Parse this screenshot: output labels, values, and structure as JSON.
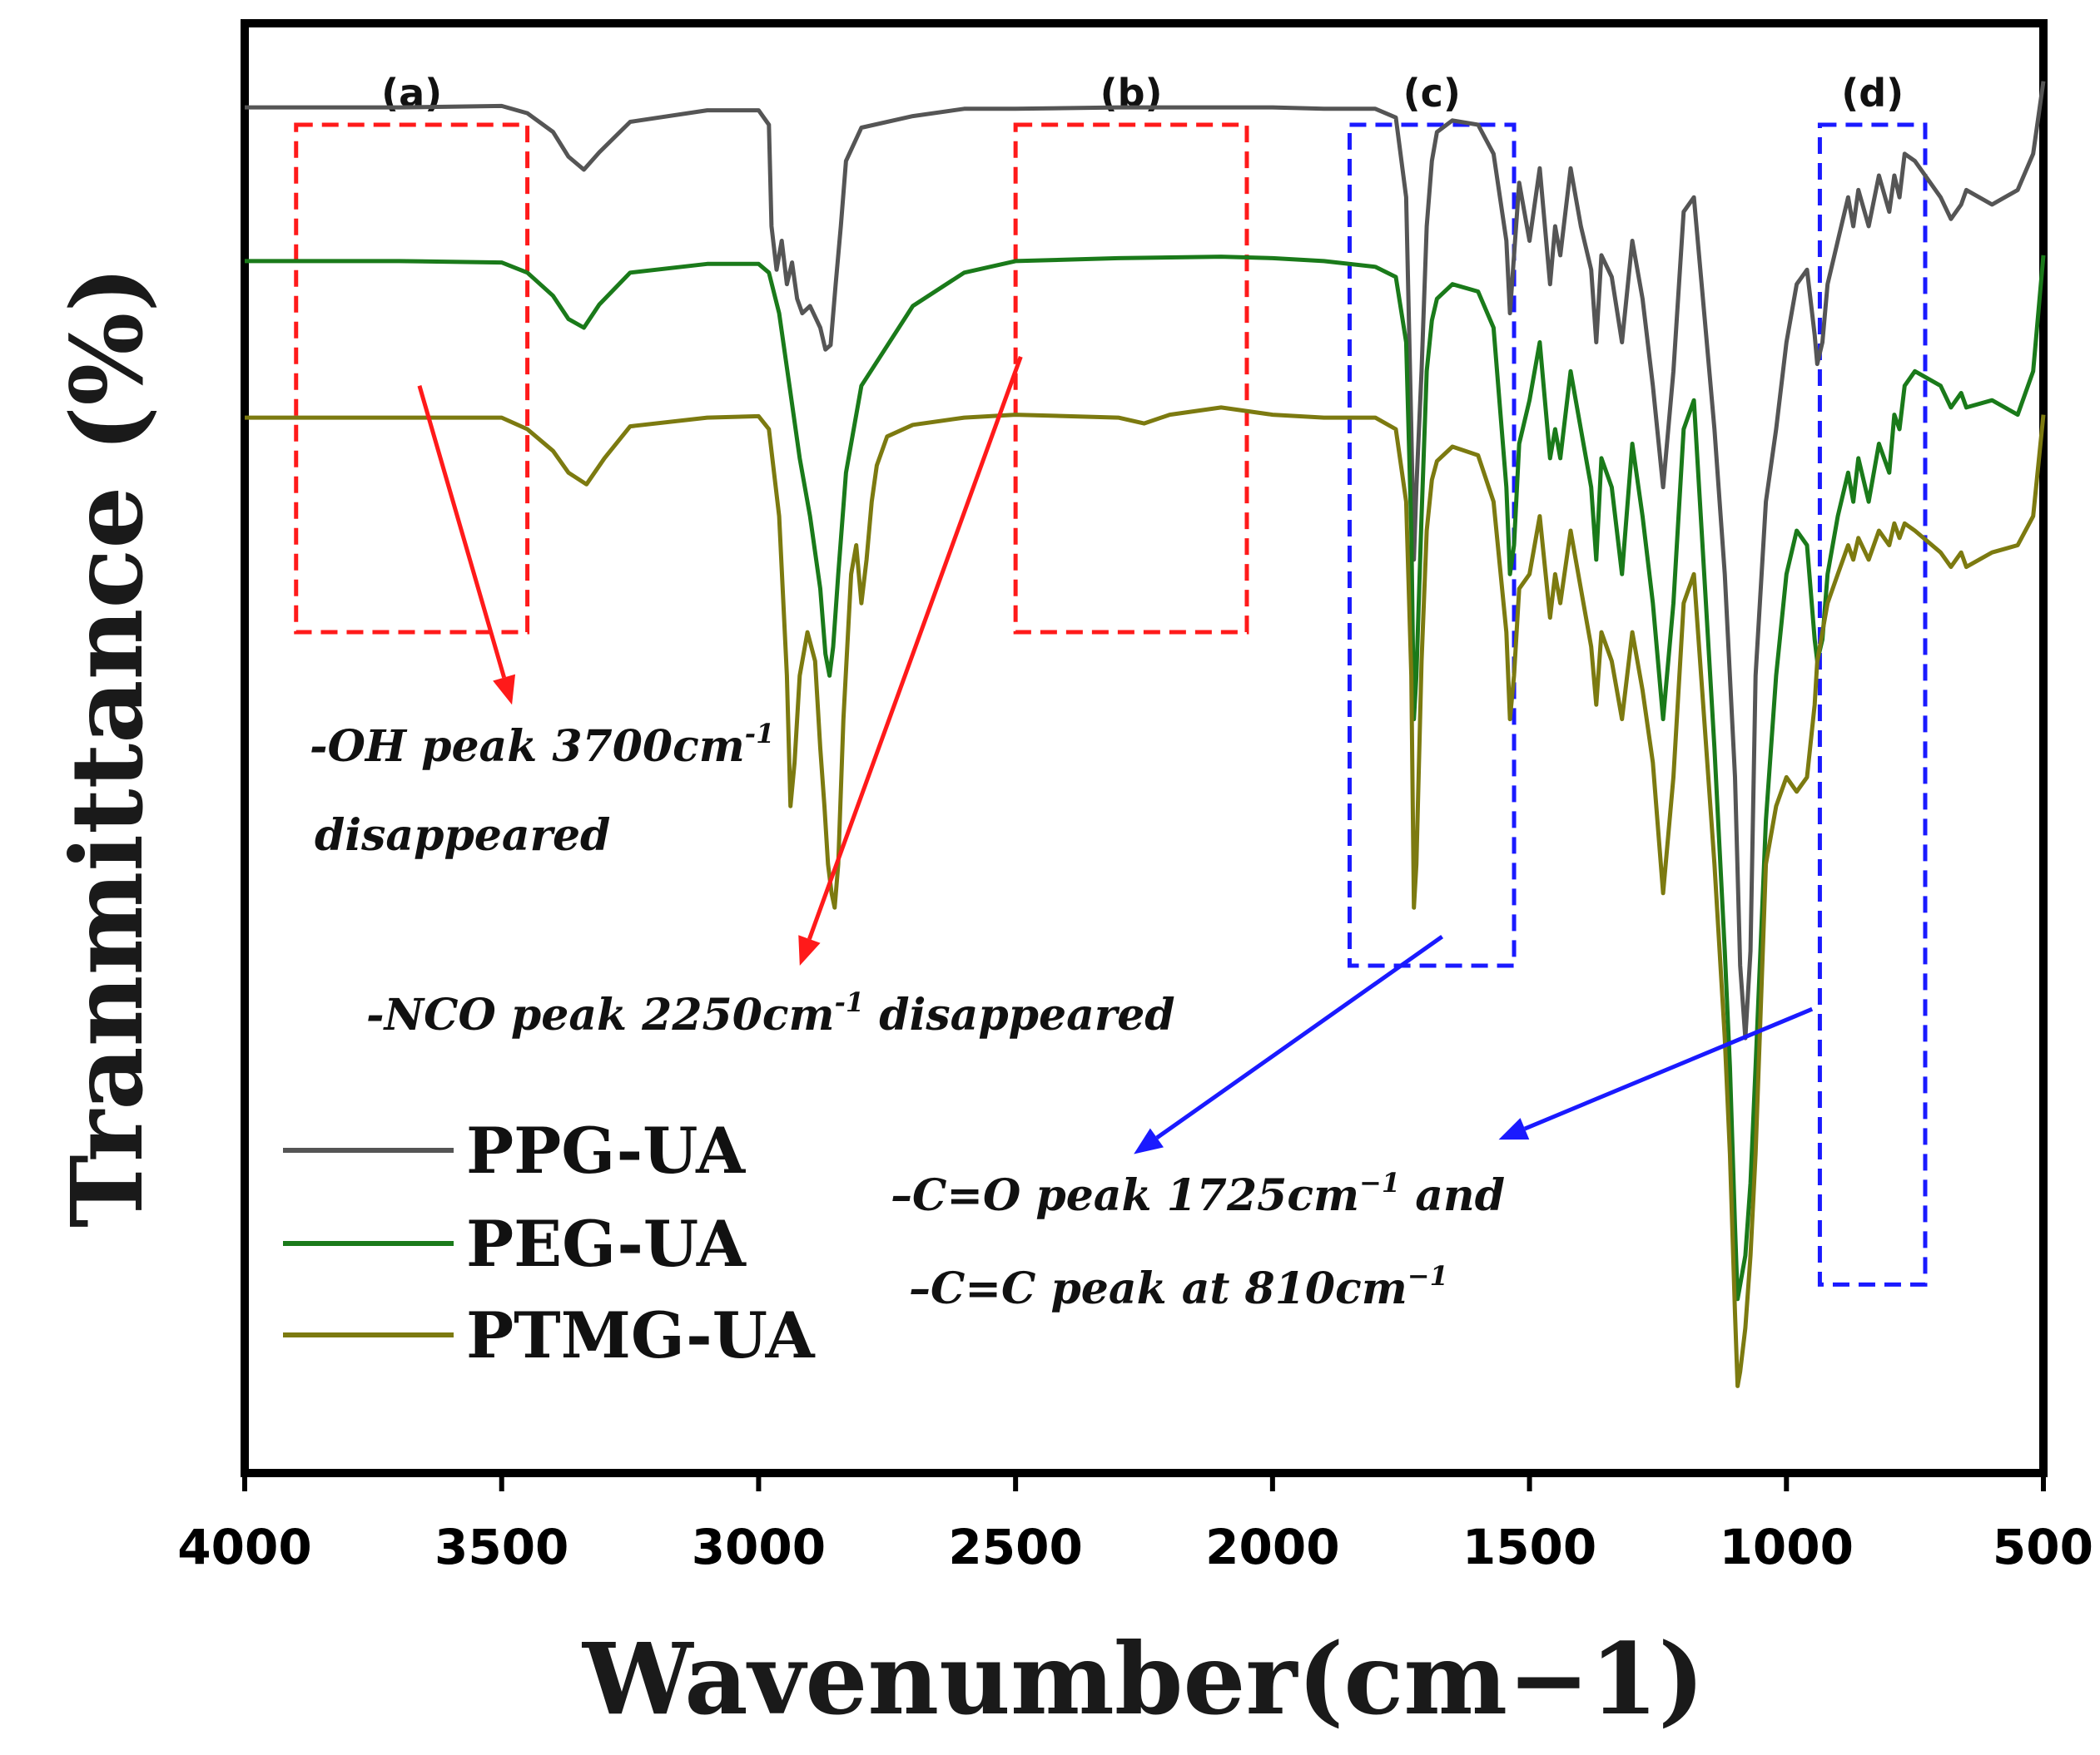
{
  "chart_data": {
    "type": "line",
    "title": "",
    "xlabel": "Wavenumber(cm−1)",
    "ylabel": "Tranmittance (%)",
    "xlim": [
      4000,
      500
    ],
    "ylim": [
      0,
      100
    ],
    "y_ticks_shown": false,
    "x_ticks": [
      "4000",
      "3500",
      "3000",
      "2500",
      "2000",
      "1500",
      "1000",
      "500"
    ],
    "x_tick_values": [
      4000,
      3500,
      3000,
      2500,
      2000,
      1500,
      1000,
      500
    ],
    "legend_position": "bottom-left",
    "regions": [
      {
        "label": "(a)",
        "x1": 3900,
        "x2": 3450,
        "y_top": 93,
        "y_bottom": 58,
        "color": "#ff1a1a"
      },
      {
        "label": "(b)",
        "x1": 2500,
        "x2": 2050,
        "y_top": 93,
        "y_bottom": 58,
        "color": "#ff1a1a"
      },
      {
        "label": "(c)",
        "x1": 1850,
        "x2": 1530,
        "y_top": 93,
        "y_bottom": 35,
        "color": "#1a1aff"
      },
      {
        "label": "(d)",
        "x1": 935,
        "x2": 730,
        "y_top": 93,
        "y_bottom": 13,
        "color": "#1a1aff"
      }
    ],
    "annotations": [
      {
        "lines": [
          "-OH  peak  3700cm",
          "disappeared"
        ],
        "sup": "-1",
        "arrow_color": "#ff1a1a",
        "arrow_from": [
          3660,
          75
        ],
        "arrow_to": [
          3480,
          53
        ]
      },
      {
        "lines": [
          "-NCO  peak  2250cm",
          "  disappeared"
        ],
        "sup": "-1",
        "arrow_color": "#ff1a1a",
        "arrow_from": [
          2490,
          77
        ],
        "arrow_to": [
          2920,
          35
        ]
      },
      {
        "lines": [
          "–C=O  peak  1725cm",
          "  and"
        ],
        "sup": "−1",
        "arrow_color": "#1a1aff",
        "arrow_from": [
          1670,
          37
        ],
        "arrow_to": [
          2270,
          22
        ]
      },
      {
        "lines": [
          "–C=C  peak  at  810cm"
        ],
        "sup": "−1",
        "arrow_color": "#1a1aff",
        "arrow_from": [
          950,
          32
        ],
        "arrow_to": [
          1560,
          23
        ]
      }
    ],
    "series": [
      {
        "name": "PPG-UA",
        "color": "#555555",
        "x": [
          4000,
          3700,
          3500,
          3450,
          3400,
          3370,
          3340,
          3310,
          3250,
          3100,
          3000,
          2980,
          2975,
          2965,
          2955,
          2945,
          2935,
          2925,
          2915,
          2900,
          2880,
          2870,
          2860,
          2850,
          2840,
          2830,
          2800,
          2700,
          2600,
          2500,
          2300,
          2100,
          2000,
          1900,
          1800,
          1760,
          1740,
          1730,
          1725,
          1720,
          1710,
          1700,
          1690,
          1680,
          1650,
          1600,
          1570,
          1545,
          1538,
          1530,
          1520,
          1500,
          1480,
          1460,
          1450,
          1440,
          1420,
          1400,
          1380,
          1370,
          1360,
          1340,
          1320,
          1300,
          1280,
          1260,
          1240,
          1220,
          1200,
          1180,
          1160,
          1140,
          1120,
          1100,
          1090,
          1080,
          1070,
          1060,
          1040,
          1020,
          1000,
          980,
          960,
          945,
          940,
          930,
          920,
          900,
          880,
          870,
          860,
          840,
          820,
          800,
          790,
          780,
          770,
          750,
          700,
          680,
          660,
          650,
          600,
          550,
          520,
          500
        ],
        "y": [
          94.2,
          94.2,
          94.3,
          93.8,
          92.5,
          90.8,
          89.9,
          91.1,
          93.2,
          94.0,
          94.0,
          93.0,
          86.0,
          83.0,
          85.0,
          82.0,
          83.5,
          81.0,
          80.0,
          80.5,
          79.0,
          77.5,
          77.8,
          82.0,
          86.0,
          90.5,
          92.8,
          93.6,
          94.1,
          94.1,
          94.2,
          94.2,
          94.2,
          94.1,
          94.1,
          93.5,
          88.0,
          72.0,
          63.0,
          68.0,
          76.0,
          86.0,
          90.5,
          92.5,
          93.3,
          93.0,
          91.0,
          85.0,
          80.0,
          84.0,
          89.0,
          85.0,
          90.0,
          82.0,
          86.0,
          84.0,
          90.0,
          86.0,
          83.0,
          78.0,
          84.0,
          82.5,
          78.0,
          85.0,
          81.0,
          75.0,
          68.0,
          76.0,
          87.0,
          88.0,
          80.0,
          72.0,
          62.0,
          48.0,
          35.0,
          30.0,
          36.0,
          55.0,
          67.0,
          72.0,
          78.0,
          82.0,
          83.0,
          78.5,
          76.5,
          78.0,
          82.0,
          85.0,
          88.0,
          86.0,
          88.5,
          86.0,
          89.5,
          87.0,
          89.5,
          88.0,
          91.0,
          90.5,
          88.0,
          86.5,
          87.5,
          88.5,
          87.5,
          88.5,
          91.0,
          96.0
        ]
      },
      {
        "name": "PEG-UA",
        "color": "#1a7a1a",
        "x": [
          4000,
          3700,
          3500,
          3450,
          3400,
          3370,
          3340,
          3310,
          3250,
          3100,
          3000,
          2980,
          2960,
          2940,
          2920,
          2900,
          2880,
          2870,
          2862,
          2855,
          2845,
          2830,
          2800,
          2700,
          2600,
          2500,
          2300,
          2100,
          2000,
          1900,
          1800,
          1760,
          1740,
          1730,
          1725,
          1720,
          1710,
          1700,
          1690,
          1680,
          1650,
          1600,
          1570,
          1545,
          1538,
          1530,
          1520,
          1500,
          1480,
          1460,
          1450,
          1440,
          1420,
          1400,
          1380,
          1370,
          1360,
          1340,
          1320,
          1300,
          1280,
          1260,
          1240,
          1220,
          1200,
          1180,
          1160,
          1140,
          1120,
          1110,
          1100,
          1095,
          1090,
          1080,
          1070,
          1060,
          1040,
          1020,
          1000,
          980,
          960,
          945,
          940,
          930,
          920,
          900,
          880,
          870,
          860,
          840,
          820,
          800,
          790,
          780,
          770,
          750,
          700,
          680,
          660,
          650,
          600,
          550,
          520,
          500
        ],
        "y": [
          83.6,
          83.6,
          83.5,
          82.8,
          81.2,
          79.6,
          79.0,
          80.6,
          82.8,
          83.4,
          83.4,
          82.8,
          80.0,
          75.0,
          70.0,
          66.0,
          61.0,
          56.5,
          55.0,
          57.0,
          62.0,
          69.0,
          75.0,
          80.5,
          82.8,
          83.6,
          83.8,
          83.9,
          83.8,
          83.6,
          83.2,
          82.5,
          78.0,
          65.0,
          52.0,
          55.0,
          66.0,
          76.0,
          79.5,
          81.0,
          82.0,
          81.5,
          79.0,
          68.0,
          62.0,
          64.0,
          71.0,
          74.0,
          78.0,
          70.0,
          72.0,
          70.0,
          76.0,
          72.0,
          68.0,
          63.0,
          70.0,
          68.0,
          62.0,
          71.0,
          66.0,
          60.0,
          52.0,
          60.0,
          72.0,
          74.0,
          62.0,
          50.0,
          36.0,
          28.0,
          17.0,
          12.0,
          13.0,
          15.0,
          20.0,
          28.0,
          45.0,
          55.0,
          62.0,
          65.0,
          64.0,
          57.5,
          56.0,
          57.5,
          62.0,
          66.0,
          69.0,
          67.0,
          70.0,
          67.0,
          71.0,
          69.0,
          73.0,
          72.0,
          75.0,
          76.0,
          75.0,
          73.5,
          74.5,
          73.5,
          74.0,
          73.0,
          76.0,
          84.0
        ]
      },
      {
        "name": "PTMG-UA",
        "color": "#7c7a10",
        "x": [
          4000,
          3700,
          3500,
          3450,
          3400,
          3370,
          3335,
          3300,
          3250,
          3100,
          3000,
          2980,
          2960,
          2945,
          2938,
          2930,
          2920,
          2905,
          2890,
          2880,
          2872,
          2865,
          2858,
          2852,
          2845,
          2835,
          2820,
          2810,
          2800,
          2790,
          2780,
          2770,
          2750,
          2700,
          2600,
          2500,
          2300,
          2250,
          2200,
          2100,
          2000,
          1900,
          1800,
          1760,
          1740,
          1730,
          1725,
          1720,
          1710,
          1700,
          1690,
          1680,
          1650,
          1600,
          1570,
          1545,
          1538,
          1530,
          1520,
          1500,
          1480,
          1460,
          1450,
          1440,
          1420,
          1400,
          1380,
          1370,
          1360,
          1340,
          1320,
          1300,
          1280,
          1260,
          1240,
          1220,
          1200,
          1180,
          1160,
          1140,
          1120,
          1110,
          1100,
          1095,
          1090,
          1080,
          1070,
          1060,
          1040,
          1020,
          1000,
          980,
          960,
          945,
          940,
          930,
          920,
          900,
          880,
          870,
          860,
          840,
          820,
          800,
          790,
          780,
          770,
          750,
          700,
          680,
          660,
          650,
          600,
          550,
          520,
          500
        ],
        "y": [
          72.8,
          72.8,
          72.8,
          72.0,
          70.5,
          69.0,
          68.2,
          70.0,
          72.2,
          72.8,
          72.9,
          72.0,
          66.0,
          55.0,
          46.0,
          49.0,
          55.0,
          58.0,
          56.0,
          50.0,
          46.0,
          42.0,
          40.0,
          39.0,
          42.0,
          52.0,
          62.0,
          64.0,
          60.0,
          63.0,
          67.0,
          69.5,
          71.5,
          72.3,
          72.8,
          73.0,
          72.8,
          72.4,
          73.0,
          73.5,
          73.0,
          72.8,
          72.8,
          72.0,
          67.0,
          55.0,
          39.0,
          42.0,
          56.0,
          65.0,
          68.5,
          69.8,
          70.8,
          70.2,
          67.0,
          58.0,
          52.0,
          55.0,
          61.0,
          62.0,
          66.0,
          59.0,
          62.0,
          60.0,
          65.0,
          61.0,
          57.0,
          53.0,
          58.0,
          56.0,
          52.0,
          58.0,
          54.0,
          49.0,
          40.0,
          48.0,
          60.0,
          62.0,
          52.0,
          42.0,
          30.0,
          22.0,
          11.0,
          6.0,
          7.0,
          10.0,
          15.0,
          22.0,
          42.0,
          46.0,
          48.0,
          47.0,
          48.0,
          53.0,
          56.0,
          58.0,
          60.0,
          62.0,
          64.0,
          63.0,
          64.5,
          63.0,
          65.0,
          64.0,
          65.5,
          64.5,
          65.5,
          65.0,
          63.5,
          62.5,
          63.5,
          62.5,
          63.5,
          64.0,
          66.0,
          73.0
        ]
      }
    ]
  }
}
